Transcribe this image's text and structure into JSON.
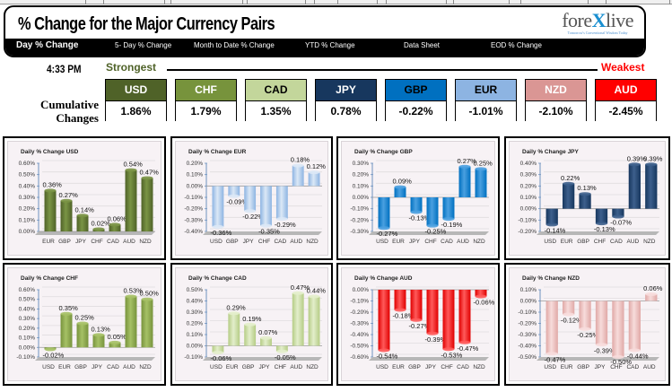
{
  "header": {
    "title": "% Change for the Major Currency Pairs",
    "logo": {
      "text_pre": "fore",
      "text_x": "X",
      "text_post": "live",
      "tagline": "Tomorrow's Conventional Wisdom Today"
    },
    "nav": [
      {
        "label": "Day % Change",
        "active": true
      },
      {
        "label": "5- Day % Change",
        "active": false
      },
      {
        "label": "Month to Date % Change",
        "active": false
      },
      {
        "label": "YTD % Change",
        "active": false
      },
      {
        "label": "Data Sheet",
        "active": false
      },
      {
        "label": "EOD % Change",
        "active": false
      }
    ]
  },
  "strength": {
    "time": "4:33 PM",
    "strongest_label": "Strongest",
    "weakest_label": "Weakest",
    "row_label_line1": "Cumulative",
    "row_label_line2": "Changes",
    "currencies": [
      {
        "code": "USD",
        "value": "1.86%",
        "color": "#4f6228",
        "text_color": "#ffffff"
      },
      {
        "code": "CHF",
        "value": "1.79%",
        "color": "#77933c",
        "text_color": "#ffffff"
      },
      {
        "code": "CAD",
        "value": "1.35%",
        "color": "#c3d69b",
        "text_color": "#000000"
      },
      {
        "code": "JPY",
        "value": "0.78%",
        "color": "#17375e",
        "text_color": "#ffffff"
      },
      {
        "code": "GBP",
        "value": "-0.22%",
        "color": "#0070c0",
        "text_color": "#000000"
      },
      {
        "code": "EUR",
        "value": "-1.01%",
        "color": "#8db4e2",
        "text_color": "#000000"
      },
      {
        "code": "NZD",
        "value": "-2.10%",
        "color": "#da9694",
        "text_color": "#ffffff"
      },
      {
        "code": "AUD",
        "value": "-2.45%",
        "color": "#ff0000",
        "text_color": "#ffffff"
      }
    ]
  },
  "chart_data": [
    {
      "type": "bar",
      "title": "Daily % Change USD",
      "categories": [
        "EUR",
        "GBP",
        "JPY",
        "CHF",
        "CAD",
        "AUD",
        "NZD"
      ],
      "values": [
        0.36,
        0.27,
        0.14,
        0.02,
        0.06,
        0.54,
        0.47
      ],
      "labels": [
        "0.36%",
        "0.27%",
        "0.14%",
        "0.02%",
        "0.06%",
        "0.54%",
        "0.47%"
      ],
      "ylim": [
        0.0,
        0.6
      ],
      "yticks": [
        "0.60%",
        "0.50%",
        "0.40%",
        "0.30%",
        "0.20%",
        "0.10%",
        "0.00%"
      ],
      "ystep": 0.1,
      "xlabel": "",
      "ylabel": "",
      "grid": true,
      "bar_color": "#4f6228",
      "bar_light": "#7a9445"
    },
    {
      "type": "bar",
      "title": "Daily % Change EUR",
      "categories": [
        "USD",
        "GBP",
        "JPY",
        "CHF",
        "CAD",
        "AUD",
        "NZD"
      ],
      "values": [
        -0.36,
        -0.09,
        -0.22,
        -0.35,
        -0.29,
        0.18,
        0.12
      ],
      "labels": [
        "-0.36%",
        "-0.09%",
        "-0.22%",
        "-0.35%",
        "-0.29%",
        "0.18%",
        "0.12%"
      ],
      "ylim": [
        -0.4,
        0.2
      ],
      "yticks": [
        "0.20%",
        "0.10%",
        "0.00%",
        "-0.10%",
        "-0.20%",
        "-0.30%",
        "-0.40%"
      ],
      "ystep": 0.1,
      "xlabel": "",
      "ylabel": "",
      "grid": true,
      "bar_color": "#8db4e2",
      "bar_light": "#dbe8f6"
    },
    {
      "type": "bar",
      "title": "Daily % Change GBP",
      "categories": [
        "USD",
        "EUR",
        "JPY",
        "CHF",
        "CAD",
        "AUD",
        "NZD"
      ],
      "values": [
        -0.27,
        0.09,
        -0.13,
        -0.25,
        -0.19,
        0.27,
        0.25
      ],
      "labels": [
        "-0.27%",
        "0.09%",
        "-0.13%",
        "-0.25%",
        "-0.19%",
        "0.27%",
        "0.25%"
      ],
      "ylim": [
        -0.3,
        0.3
      ],
      "yticks": [
        "0.30%",
        "0.20%",
        "0.10%",
        "0.00%",
        "-0.10%",
        "-0.20%",
        "-0.30%"
      ],
      "ystep": 0.1,
      "xlabel": "",
      "ylabel": "",
      "grid": true,
      "bar_color": "#0070c0",
      "bar_light": "#4aa0e0"
    },
    {
      "type": "bar",
      "title": "Daily % Change JPY",
      "categories": [
        "USD",
        "EUR",
        "GBP",
        "CHF",
        "CAD",
        "AUD",
        "NZD"
      ],
      "values": [
        -0.14,
        0.22,
        0.13,
        -0.13,
        -0.07,
        0.39,
        0.39
      ],
      "labels": [
        "-0.14%",
        "0.22%",
        "0.13%",
        "-0.13%",
        "-0.07%",
        "0.39%",
        "0.39%"
      ],
      "ylim": [
        -0.2,
        0.4
      ],
      "yticks": [
        "0.40%",
        "0.30%",
        "0.20%",
        "0.10%",
        "0.00%",
        "-0.10%",
        "-0.20%"
      ],
      "ystep": 0.1,
      "xlabel": "",
      "ylabel": "",
      "grid": true,
      "bar_color": "#17375e",
      "bar_light": "#3d5f8c"
    },
    {
      "type": "bar",
      "title": "Daily % Change CHF",
      "categories": [
        "USD",
        "EUR",
        "GBP",
        "JPY",
        "CAD",
        "AUD",
        "NZD"
      ],
      "values": [
        -0.02,
        0.35,
        0.25,
        0.13,
        0.05,
        0.53,
        0.5
      ],
      "labels": [
        "-0.02%",
        "0.35%",
        "0.25%",
        "0.13%",
        "0.05%",
        "0.53%",
        "0.50%"
      ],
      "ylim": [
        -0.1,
        0.6
      ],
      "yticks": [
        "0.60%",
        "0.50%",
        "0.40%",
        "0.30%",
        "0.20%",
        "0.10%",
        "0.00%",
        "-0.10%"
      ],
      "ystep": 0.1,
      "xlabel": "",
      "ylabel": "",
      "grid": true,
      "bar_color": "#77933c",
      "bar_light": "#a6c166"
    },
    {
      "type": "bar",
      "title": "Daily % Change CAD",
      "categories": [
        "USD",
        "EUR",
        "GBP",
        "JPY",
        "CHF",
        "AUD",
        "NZD"
      ],
      "values": [
        -0.06,
        0.29,
        0.19,
        0.07,
        -0.05,
        0.47,
        0.44
      ],
      "labels": [
        "-0.06%",
        "0.29%",
        "0.19%",
        "0.07%",
        "-0.05%",
        "0.47%",
        "0.44%"
      ],
      "ylim": [
        -0.1,
        0.5
      ],
      "yticks": [
        "0.50%",
        "0.40%",
        "0.30%",
        "0.20%",
        "0.10%",
        "0.00%",
        "-0.10%"
      ],
      "ystep": 0.1,
      "xlabel": "",
      "ylabel": "",
      "grid": true,
      "bar_color": "#b5cc85",
      "bar_light": "#e3eecb"
    },
    {
      "type": "bar",
      "title": "Daily % Change AUD",
      "categories": [
        "USD",
        "EUR",
        "GBP",
        "JPY",
        "CHF",
        "CAD",
        "NZD"
      ],
      "values": [
        -0.54,
        -0.18,
        -0.27,
        -0.39,
        -0.53,
        -0.47,
        -0.06
      ],
      "labels": [
        "-0.54%",
        "-0.18%",
        "-0.27%",
        "-0.39%",
        "-0.53%",
        "-0.47%",
        "-0.06%"
      ],
      "ylim": [
        -0.6,
        0.0
      ],
      "yticks": [
        "0.00%",
        "-0.10%",
        "-0.20%",
        "-0.30%",
        "-0.40%",
        "-0.50%",
        "-0.60%"
      ],
      "ystep": 0.1,
      "xlabel": "",
      "ylabel": "",
      "grid": true,
      "bar_color": "#e00000",
      "bar_light": "#ff5a5a"
    },
    {
      "type": "bar",
      "title": "Daily % Change NZD",
      "categories": [
        "USD",
        "EUR",
        "GBP",
        "JPY",
        "CHF",
        "CAD",
        "AUD"
      ],
      "values": [
        -0.47,
        -0.12,
        -0.25,
        -0.39,
        -0.5,
        -0.44,
        0.06
      ],
      "labels": [
        "-0.47%",
        "-0.12%",
        "-0.25%",
        "-0.39%",
        "-0.50%",
        "-0.44%",
        "0.06%"
      ],
      "ylim": [
        -0.5,
        0.1
      ],
      "yticks": [
        "0.10%",
        "0.00%",
        "-0.10%",
        "-0.20%",
        "-0.30%",
        "-0.40%",
        "-0.50%"
      ],
      "ystep": 0.1,
      "xlabel": "",
      "ylabel": "",
      "grid": true,
      "bar_color": "#e0a8a6",
      "bar_light": "#f7dcdb"
    }
  ]
}
